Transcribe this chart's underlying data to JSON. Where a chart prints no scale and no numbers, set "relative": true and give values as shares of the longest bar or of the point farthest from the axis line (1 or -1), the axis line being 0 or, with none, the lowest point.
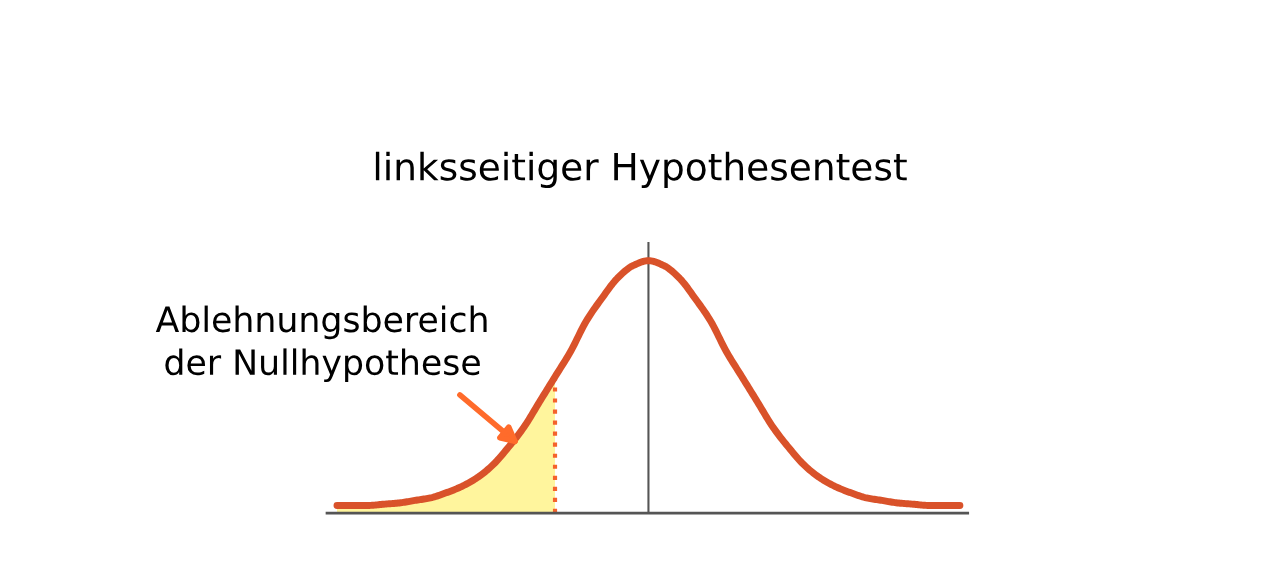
{
  "chart_data": {
    "type": "line",
    "relative": true,
    "title": "linksseitiger Hypothesentest",
    "annotations": [
      "Ablehnungsbereich\nder Nullhypothese"
    ],
    "categories": [
      null,
      null,
      null,
      null,
      null,
      null,
      null,
      null,
      null,
      null,
      null,
      null,
      null,
      null,
      null,
      null,
      null,
      null,
      null,
      null,
      null,
      null,
      null,
      null,
      null,
      null,
      null,
      null,
      null,
      null,
      null,
      null,
      null,
      null,
      null,
      null,
      null,
      null,
      null,
      null,
      null
    ],
    "series": [
      {
        "type": "area",
        "color": "#fff59d",
        "values": [
          0.03,
          0.03,
          0.03,
          0.035,
          0.04,
          0.05,
          0.06,
          0.08,
          0.105,
          0.14,
          0.19,
          0.26,
          0.34,
          0.44,
          0.54,
          null,
          null,
          null,
          null,
          null,
          null,
          null,
          null,
          null,
          null,
          null,
          null,
          null,
          null,
          null,
          null,
          null,
          null,
          null,
          null,
          null,
          null,
          null,
          null,
          null,
          null
        ]
      },
      {
        "color": "#d9522a",
        "values": [
          0.03,
          0.03,
          0.03,
          0.035,
          0.04,
          0.05,
          0.06,
          0.08,
          0.105,
          0.14,
          0.19,
          0.26,
          0.34,
          0.44,
          0.54,
          0.64,
          0.76,
          0.85,
          0.93,
          0.98,
          1.0,
          0.98,
          0.93,
          0.85,
          0.76,
          0.64,
          0.54,
          0.44,
          0.34,
          0.26,
          0.19,
          0.14,
          0.105,
          0.08,
          0.06,
          0.05,
          0.04,
          0.035,
          0.03,
          0.03,
          0.03
        ]
      }
    ]
  }
}
